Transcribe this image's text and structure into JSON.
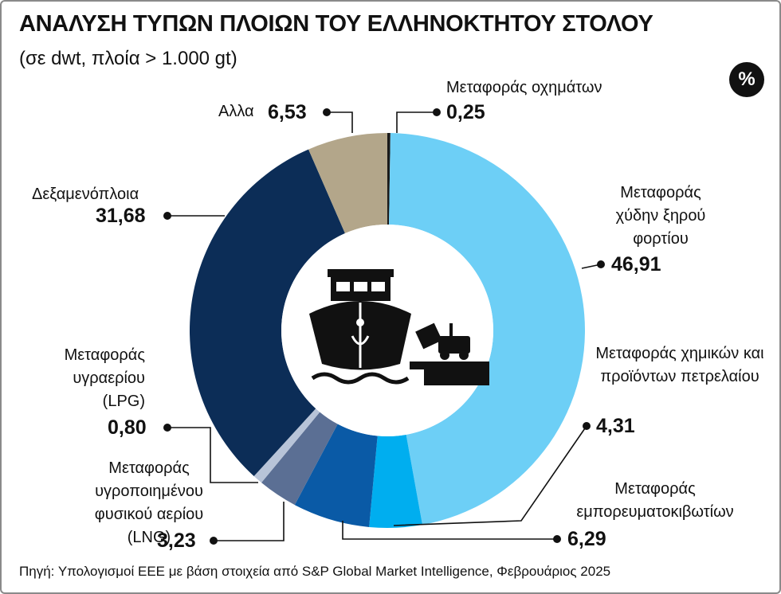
{
  "chart_data": {
    "type": "pie",
    "title": "ΑΝΑΛΥΣΗ ΤΥΠΩΝ ΠΛΟΙΩΝ ΤΟΥ ΕΛΛΗΝΟΚΤΗΤΟΥ ΣΤΟΛΟΥ",
    "subtitle": "(σε dwt, πλοία > 1.000 gt)",
    "unit_badge": "%",
    "source": "Πηγή: Υπολογισμοί ΕΕΕ με βάση στοιχεία από S&P Global Market Intelligence, Φεβρουάριος 2025",
    "categories": [
      "Μεταφοράς οχημάτων",
      "Μεταφοράς χύδην ξηρού φορτίου",
      "Μεταφοράς χημικών και προϊόντων πετρελαίου",
      "Μεταφοράς εμπορευματοκιβωτίων",
      "Μεταφοράς υγροποιημένου φυσικού αερίου (LNG)",
      "Μεταφοράς υγραερίου (LPG)",
      "Δεξαμενόπλοια",
      "Αλλα"
    ],
    "values": [
      0.25,
      46.91,
      4.31,
      6.29,
      3.23,
      0.8,
      31.68,
      6.53
    ],
    "value_labels": [
      "0,25",
      "46,91",
      "4,31",
      "6,29",
      "3,23",
      "0,80",
      "31,68",
      "6,53"
    ],
    "colors": [
      "#1a1a1a",
      "#6dcff6",
      "#00aeef",
      "#0a5aa6",
      "#5b6f94",
      "#b8c4d8",
      "#0c2d57",
      "#b3a68a"
    ],
    "donut": true
  }
}
